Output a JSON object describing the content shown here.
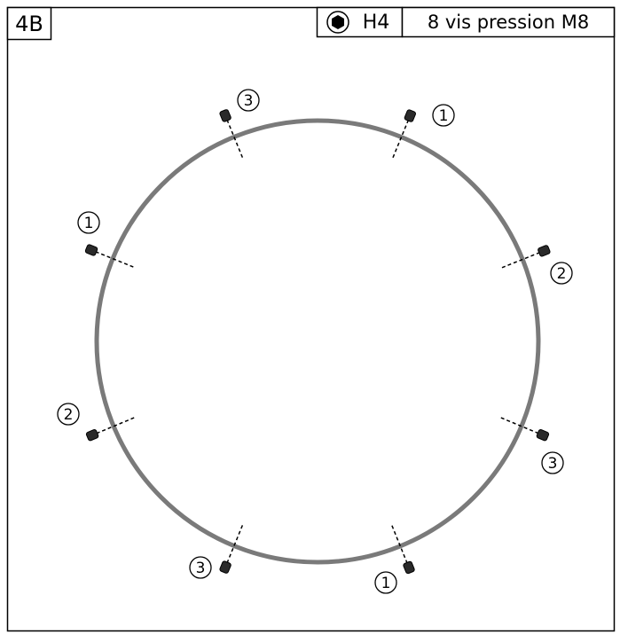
{
  "header": {
    "code": "4B",
    "tool": "H4",
    "description": "8 vis pression M8"
  },
  "screws": [
    {
      "label": "1"
    },
    {
      "label": "3"
    },
    {
      "label": "1"
    },
    {
      "label": "2"
    },
    {
      "label": "2"
    },
    {
      "label": "3"
    },
    {
      "label": "3"
    },
    {
      "label": "1"
    }
  ]
}
